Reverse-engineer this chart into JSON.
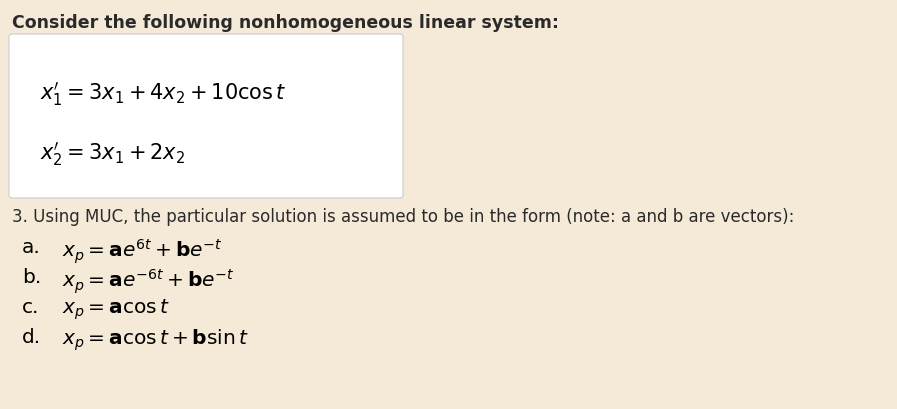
{
  "bg_color": "#f5ead8",
  "box_color": "#ffffff",
  "title": "Consider the following nonhomogeneous linear system:",
  "eq1": "$x_1' = 3x_1 + 4x_2 + 10\\cos t$",
  "eq2": "$x_2' = 3x_1 + 2x_2$",
  "question": "3. Using MUC, the particular solution is assumed to be in the form (note: a and b are vectors):",
  "option_a_label": "a.",
  "option_a": "$x_p = \\mathbf{a}e^{6t} + \\mathbf{b}e^{-t}$",
  "option_b_label": "b.",
  "option_b": "$x_p = \\mathbf{a}e^{-6t} + \\mathbf{b}e^{-t}$",
  "option_c_label": "c.",
  "option_c": "$x_p = \\mathbf{a}\\cos t$",
  "option_d_label": "d.",
  "option_d": "$x_p = \\mathbf{a}\\cos t + \\mathbf{b}\\sin t$",
  "title_fontsize": 12.5,
  "eq_fontsize": 15,
  "question_fontsize": 12,
  "option_fontsize": 14.5,
  "label_fontsize": 14.5
}
